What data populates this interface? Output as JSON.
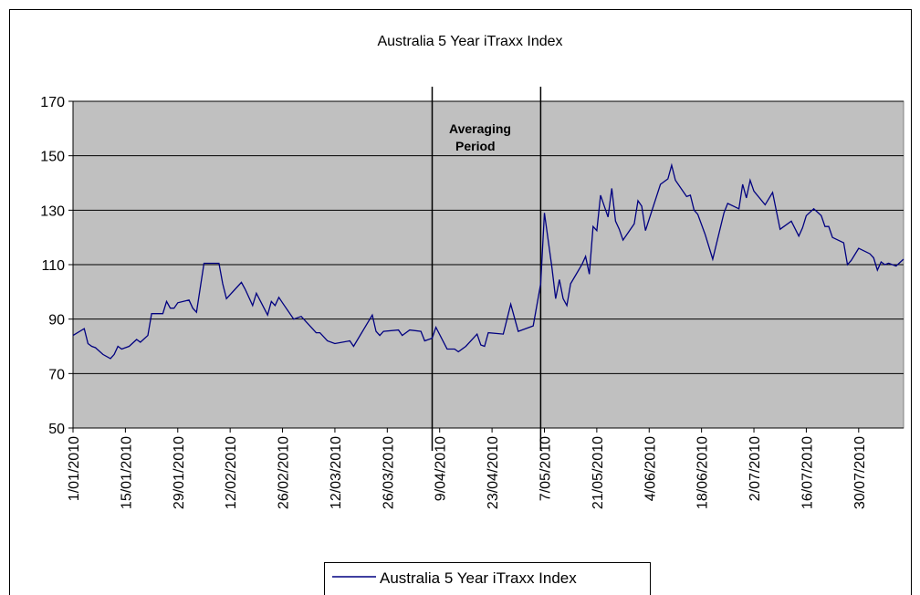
{
  "chart_data": {
    "type": "line",
    "title": "Australia 5 Year iTraxx Index",
    "series": [
      {
        "name": "Australia 5 Year iTraxx Index",
        "color": "#000080",
        "x": [
          "1/01/2010",
          "4/01/2010",
          "5/01/2010",
          "6/01/2010",
          "7/01/2010",
          "9/01/2010",
          "11/01/2010",
          "12/01/2010",
          "13/01/2010",
          "14/01/2010",
          "16/01/2010",
          "18/01/2010",
          "19/01/2010",
          "21/01/2010",
          "22/01/2010",
          "25/01/2010",
          "26/01/2010",
          "27/01/2010",
          "28/01/2010",
          "29/01/2010",
          "1/02/2010",
          "2/02/2010",
          "3/02/2010",
          "5/02/2010",
          "9/02/2010",
          "10/02/2010",
          "11/02/2010",
          "15/02/2010",
          "16/02/2010",
          "18/02/2010",
          "19/02/2010",
          "22/02/2010",
          "23/02/2010",
          "24/02/2010",
          "25/02/2010",
          "26/02/2010",
          "1/03/2010",
          "3/03/2010",
          "7/03/2010",
          "8/03/2010",
          "10/03/2010",
          "12/03/2010",
          "16/03/2010",
          "17/03/2010",
          "22/03/2010",
          "23/03/2010",
          "24/03/2010",
          "25/03/2010",
          "29/03/2010",
          "30/03/2010",
          "1/04/2010",
          "4/04/2010",
          "5/04/2010",
          "7/04/2010",
          "8/04/2010",
          "11/04/2010",
          "13/04/2010",
          "14/04/2010",
          "16/04/2010",
          "19/04/2010",
          "20/04/2010",
          "21/04/2010",
          "22/04/2010",
          "26/04/2010",
          "28/04/2010",
          "30/04/2010",
          "4/05/2010",
          "6/05/2010",
          "7/05/2010",
          "9/05/2010",
          "10/05/2010",
          "11/05/2010",
          "12/05/2010",
          "13/05/2010",
          "14/05/2010",
          "17/05/2010",
          "18/05/2010",
          "19/05/2010",
          "20/05/2010",
          "21/05/2010",
          "22/05/2010",
          "24/05/2010",
          "25/05/2010",
          "26/05/2010",
          "27/05/2010",
          "28/05/2010",
          "31/05/2010",
          "1/06/2010",
          "2/06/2010",
          "3/06/2010",
          "7/06/2010",
          "9/06/2010",
          "10/06/2010",
          "11/06/2010",
          "14/06/2010",
          "15/06/2010",
          "16/06/2010",
          "17/06/2010",
          "19/06/2010",
          "21/06/2010",
          "24/06/2010",
          "25/06/2010",
          "28/06/2010",
          "29/06/2010",
          "30/06/2010",
          "1/07/2010",
          "2/07/2010",
          "5/07/2010",
          "7/07/2010",
          "9/07/2010",
          "12/07/2010",
          "14/07/2010",
          "15/07/2010",
          "16/07/2010",
          "18/07/2010",
          "20/07/2010",
          "21/07/2010",
          "22/07/2010",
          "23/07/2010",
          "26/07/2010",
          "27/07/2010",
          "28/07/2010",
          "30/07/2010",
          "2/08/2010",
          "3/08/2010",
          "4/08/2010",
          "5/08/2010",
          "6/08/2010",
          "7/08/2010",
          "9/08/2010",
          "11/08/2010"
        ],
        "values": [
          84,
          86.5,
          81,
          80,
          79.5,
          77,
          75.5,
          77,
          80,
          79,
          80,
          82.5,
          81.5,
          84,
          92,
          92,
          96.5,
          94,
          94,
          96,
          97,
          94,
          92.5,
          110.5,
          110.5,
          103,
          97.5,
          103.5,
          101,
          95,
          99.5,
          91.5,
          96.5,
          95,
          98,
          96,
          90,
          91,
          85,
          85,
          82,
          81,
          82,
          80,
          91.5,
          85.5,
          84,
          85.5,
          86,
          84,
          86,
          85.5,
          82,
          83,
          87,
          79,
          79,
          78,
          80,
          84.5,
          80.5,
          80,
          85,
          84.5,
          95.5,
          85.5,
          87.5,
          103,
          129,
          109,
          97.5,
          104.5,
          97.5,
          95,
          103,
          110,
          113,
          106.5,
          124,
          122.5,
          135.5,
          127.5,
          138,
          126,
          123,
          119,
          125,
          133.5,
          131.5,
          122.5,
          139.5,
          141.5,
          146.5,
          141,
          135,
          135.5,
          130,
          128.5,
          121,
          112,
          129,
          132.5,
          130.5,
          139.5,
          134.5,
          141,
          137,
          132,
          136.5,
          123,
          126,
          120.5,
          123.5,
          128,
          130.5,
          128,
          124,
          124,
          120,
          118,
          110,
          111.5,
          116,
          114,
          112.5,
          108,
          111,
          110,
          110.5,
          109.5,
          112
        ]
      }
    ],
    "xlim": [
      "1/01/2010",
      "11/08/2010"
    ],
    "xticks": [
      "1/01/2010",
      "15/01/2010",
      "29/01/2010",
      "12/02/2010",
      "26/02/2010",
      "12/03/2010",
      "26/03/2010",
      "9/04/2010",
      "23/04/2010",
      "7/05/2010",
      "21/05/2010",
      "4/06/2010",
      "18/06/2010",
      "2/07/2010",
      "16/07/2010",
      "30/07/2010"
    ],
    "ylim": [
      50,
      170
    ],
    "yticks": [
      50,
      70,
      90,
      110,
      130,
      150,
      170
    ],
    "grid": true,
    "legend": "bottom",
    "annotation": {
      "lines": [
        "Averaging",
        "Period"
      ],
      "x_start": "7/04/2010",
      "x_end": "6/05/2010"
    }
  }
}
